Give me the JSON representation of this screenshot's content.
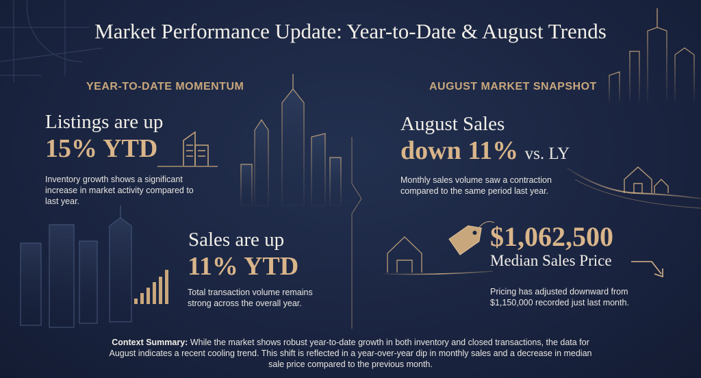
{
  "title": "Market Performance Update: Year-to-Date & August Trends",
  "ytd": {
    "heading": "YEAR-TO-DATE MOMENTUM",
    "listings": {
      "headline": "Listings are up",
      "value": "15% YTD",
      "description": "Inventory growth shows a significant increase in market activity compared to last year."
    },
    "sales": {
      "headline": "Sales are up",
      "value": "11% YTD",
      "description": "Total transaction volume remains strong across the overall year."
    }
  },
  "august": {
    "heading": "AUGUST MARKET SNAPSHOT",
    "sales": {
      "headline": "August Sales",
      "value": "down 11%",
      "comparison": "vs. LY",
      "description": "Monthly sales volume saw a contraction compared to the same period last year."
    },
    "median_price": {
      "value": "$1,062,500",
      "label": "Median Sales Price",
      "description": "Pricing has adjusted downward from $1,150,000 recorded just last month."
    }
  },
  "context": {
    "label": "Context Summary:",
    "text": "While the market shows robust year-to-date growth in both inventory and closed transactions, the data for August indicates a recent cooling trend. This shift is reflected in a year-over-year dip in monthly sales and a decrease in median sale price compared to the previous month."
  },
  "colors": {
    "background": "#1b2640",
    "accent_gold": "#d9b58a",
    "heading_gold": "#c9a77c",
    "text_light": "#f2efe8"
  },
  "icons": [
    "building-icon",
    "bar-growth-icon",
    "house-icon",
    "price-tag-icon",
    "trend-down-arrow-icon",
    "city-skyline-icon"
  ]
}
